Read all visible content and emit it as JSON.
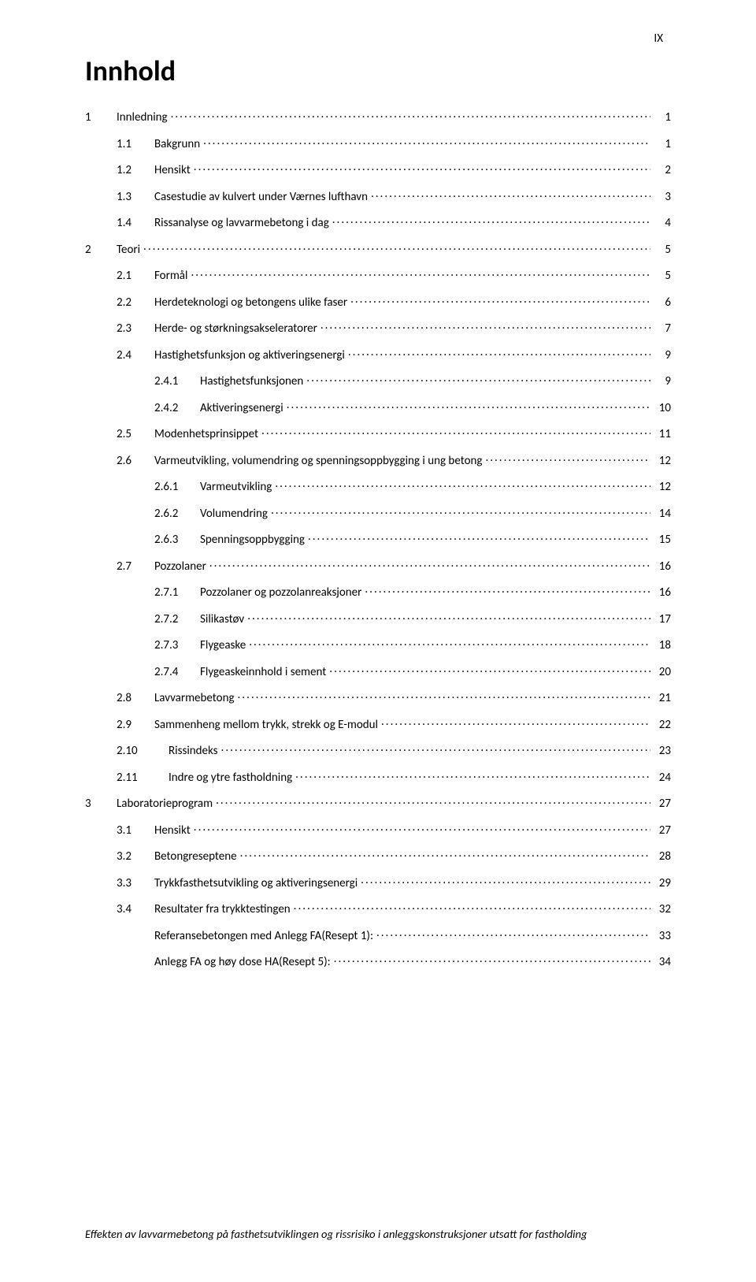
{
  "page_number_label": "IX",
  "title": "Innhold",
  "footer": "Effekten av lavvarmebetong på fasthetsutviklingen og rissrisiko i anleggskonstruksjoner utsatt for fastholding",
  "entries": [
    {
      "level": 0,
      "num": "1",
      "text": "Innledning",
      "page": "1"
    },
    {
      "level": 1,
      "num": "1.1",
      "text": "Bakgrunn",
      "page": "1"
    },
    {
      "level": 1,
      "num": "1.2",
      "text": "Hensikt",
      "page": "2"
    },
    {
      "level": 1,
      "num": "1.3",
      "text": "Casestudie av kulvert under Værnes lufthavn",
      "page": "3"
    },
    {
      "level": 1,
      "num": "1.4",
      "text": "Rissanalyse og lavvarmebetong i dag",
      "page": "4"
    },
    {
      "level": 0,
      "num": "2",
      "text": "Teori",
      "page": "5"
    },
    {
      "level": 1,
      "num": "2.1",
      "text": "Formål",
      "page": "5"
    },
    {
      "level": 1,
      "num": "2.2",
      "text": "Herdeteknologi og betongens ulike faser",
      "page": "6"
    },
    {
      "level": 1,
      "num": "2.3",
      "text": "Herde- og størkningsakseleratorer",
      "page": "7"
    },
    {
      "level": 1,
      "num": "2.4",
      "text": "Hastighetsfunksjon og aktiveringsenergi",
      "page": "9"
    },
    {
      "level": 2,
      "num": "2.4.1",
      "text": "Hastighetsfunksjonen",
      "page": "9"
    },
    {
      "level": 2,
      "num": "2.4.2",
      "text": "Aktiveringsenergi",
      "page": "10"
    },
    {
      "level": 1,
      "num": "2.5",
      "text": "Modenhetsprinsippet",
      "page": "11"
    },
    {
      "level": 1,
      "num": "2.6",
      "text": "Varmeutvikling, volumendring og spenningsoppbygging i ung betong",
      "page": "12"
    },
    {
      "level": 2,
      "num": "2.6.1",
      "text": "Varmeutvikling",
      "page": "12"
    },
    {
      "level": 2,
      "num": "2.6.2",
      "text": "Volumendring",
      "page": "14"
    },
    {
      "level": 2,
      "num": "2.6.3",
      "text": "Spenningsoppbygging",
      "page": "15"
    },
    {
      "level": 1,
      "num": "2.7",
      "text": "Pozzolaner",
      "page": "16"
    },
    {
      "level": 2,
      "num": "2.7.1",
      "text": "Pozzolaner og pozzolanreaksjoner",
      "page": "16"
    },
    {
      "level": 2,
      "num": "2.7.2",
      "text": "Silikastøv",
      "page": "17"
    },
    {
      "level": 2,
      "num": "2.7.3",
      "text": "Flygeaske",
      "page": "18"
    },
    {
      "level": 2,
      "num": "2.7.4",
      "text": "Flygeaskeinnhold i sement",
      "page": "20"
    },
    {
      "level": 1,
      "num": "2.8",
      "text": "Lavvarmebetong",
      "page": "21"
    },
    {
      "level": 1,
      "num": "2.9",
      "text": "Sammenheng mellom trykk, strekk og E-modul",
      "page": "22"
    },
    {
      "level": "1w",
      "num": "2.10",
      "text": "Rissindeks",
      "page": "23"
    },
    {
      "level": "1w",
      "num": "2.11",
      "text": "Indre og ytre fastholdning",
      "page": "24"
    },
    {
      "level": 0,
      "num": "3",
      "text": "Laboratorieprogram",
      "page": "27"
    },
    {
      "level": 1,
      "num": "3.1",
      "text": "Hensikt",
      "page": "27"
    },
    {
      "level": 1,
      "num": "3.2",
      "text": "Betongreseptene",
      "page": "28"
    },
    {
      "level": 1,
      "num": "3.3",
      "text": "Trykkfasthetsutvikling og aktiveringsenergi",
      "page": "29"
    },
    {
      "level": 1,
      "num": "3.4",
      "text": "Resultater fra trykktestingen",
      "page": "32"
    },
    {
      "level": "2nn",
      "num": "",
      "text": "Referansebetongen med Anlegg FA(Resept 1):",
      "page": "33"
    },
    {
      "level": "2nn",
      "num": "",
      "text": "Anlegg FA og høy dose HA(Resept 5):",
      "page": "34"
    }
  ]
}
